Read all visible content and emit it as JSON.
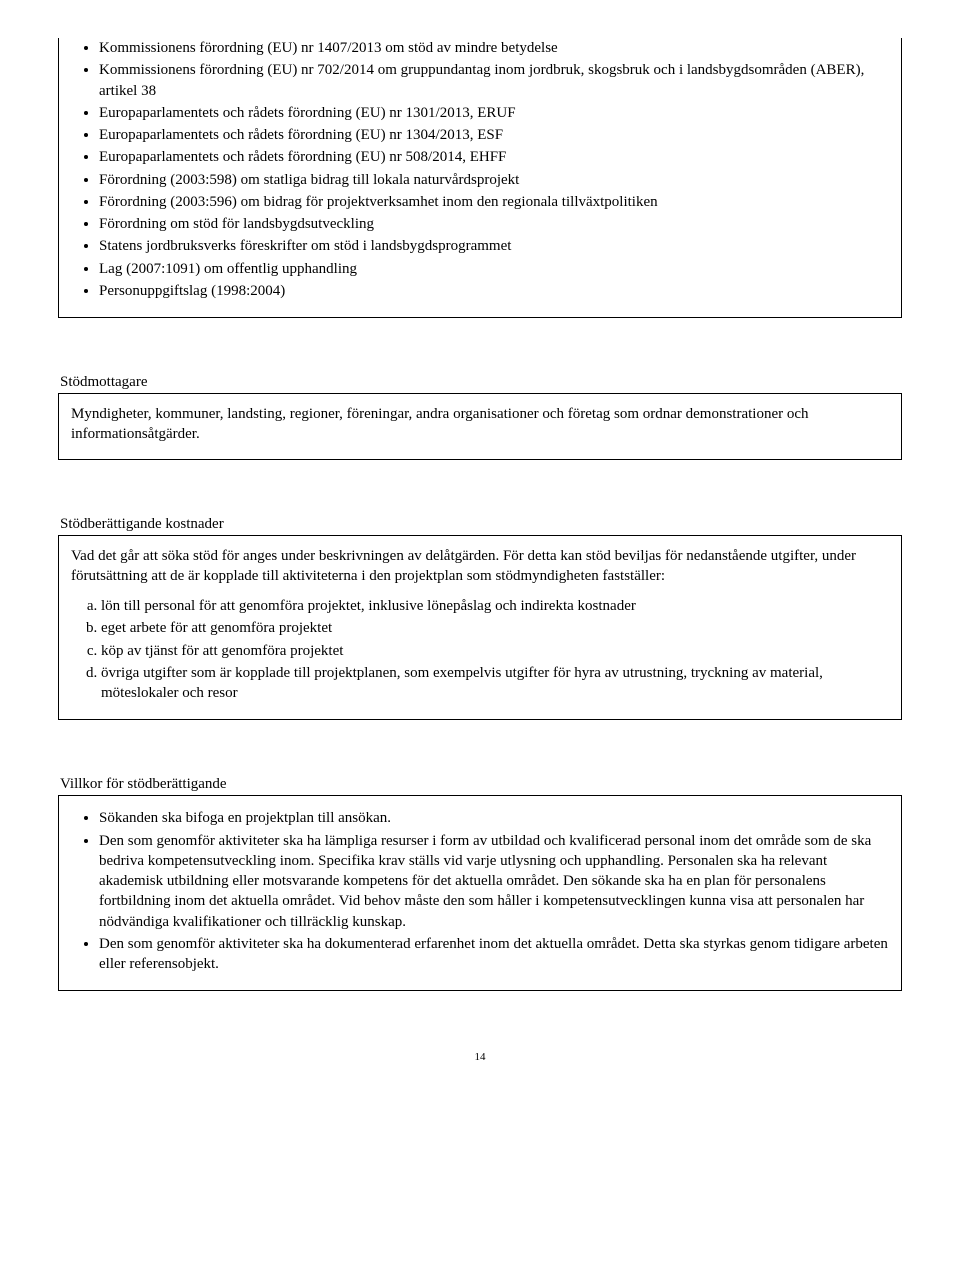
{
  "section1": {
    "items": [
      "Kommissionens förordning (EU) nr 1407/2013 om stöd av mindre betydelse",
      "Kommissionens förordning (EU) nr 702/2014 om gruppundantag inom jordbruk, skogsbruk och i landsbygdsområden (ABER), artikel 38",
      "Europaparlamentets och rådets förordning (EU) nr 1301/2013, ERUF",
      "Europaparlamentets och rådets förordning (EU) nr 1304/2013, ESF",
      "Europaparlamentets och rådets förordning (EU) nr 508/2014, EHFF",
      "Förordning (2003:598) om statliga bidrag till lokala naturvårdsprojekt",
      "Förordning (2003:596) om bidrag för projektverksamhet inom den regionala tillväxtpolitiken",
      "Förordning om stöd för landsbygdsutveckling",
      "Statens jordbruksverks föreskrifter om stöd i landsbygdsprogrammet",
      "Lag (2007:1091) om offentlig upphandling",
      "Personuppgiftslag (1998:2004)"
    ]
  },
  "section2": {
    "heading": "Stödmottagare",
    "para": "Myndigheter, kommuner, landsting, regioner, föreningar, andra organisationer och företag som ordnar demonstrationer och informationsåtgärder."
  },
  "section3": {
    "heading": "Stödberättigande kostnader",
    "intro": "Vad det går att söka stöd för anges under beskrivningen av delåtgärden. För detta kan stöd beviljas för nedanstående utgifter, under förutsättning att de är kopplade till aktiviteterna i den projektplan som stödmyndigheten fastställer:",
    "items": [
      "lön till personal för att genomföra projektet, inklusive lönepåslag och indirekta kostnader",
      "eget arbete för att genomföra projektet",
      "köp av tjänst för att genomföra projektet",
      "övriga utgifter som är kopplade till projektplanen, som exempelvis utgifter för hyra av utrustning, tryckning av material, möteslokaler och resor"
    ]
  },
  "section4": {
    "heading": "Villkor för stödberättigande",
    "items": [
      "Sökanden ska bifoga en projektplan till ansökan.",
      "Den som genomför aktiviteter ska ha lämpliga resurser i form av utbildad och kvalificerad personal inom det område som de ska bedriva kompetensutveckling inom. Specifika krav ställs vid varje utlysning och upphandling. Personalen ska ha relevant akademisk utbildning eller motsvarande kompetens för det aktuella området. Den sökande ska ha en plan för personalens fortbildning inom det aktuella området. Vid behov måste den som håller i kompetensutvecklingen kunna visa att personalen har nödvändiga kvalifikationer och tillräcklig kunskap.",
      "Den som genomför aktiviteter ska ha dokumenterad erfarenhet inom det aktuella området. Detta ska styrkas genom tidigare arbeten eller referensobjekt."
    ]
  },
  "pageNumber": "14"
}
